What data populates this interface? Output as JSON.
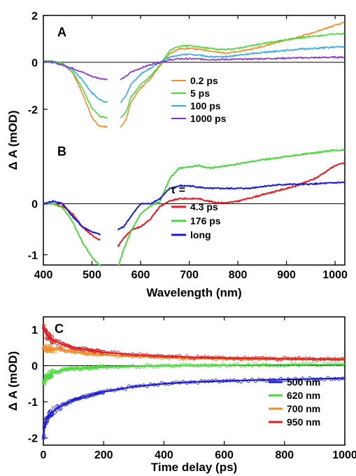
{
  "colors": {
    "orange": "#f28c28",
    "green": "#4ad83c",
    "lightblue": "#35a9e6",
    "purple": "#8a32c8",
    "red": "#e01f26",
    "blue": "#1b1bd6",
    "black": "#000000"
  },
  "chart_data": [
    {
      "type": "line",
      "panel_label": "A",
      "xlabel": "Wavelength (nm)",
      "ylabel": "Δ A (mOD)",
      "xlim": [
        400,
        1020
      ],
      "ylim": [
        -3.2,
        2.0
      ],
      "xticks": [
        400,
        500,
        600,
        700,
        800,
        900,
        1000
      ],
      "xtick_labels": [
        "400",
        "500",
        "600",
        "700",
        "800",
        "900",
        "1000"
      ],
      "yticks": [
        -2,
        0,
        2
      ],
      "ytick_labels": [
        "-2",
        "0",
        "2"
      ],
      "zero_line": true,
      "legend_position": "center-right",
      "series": [
        {
          "name": "0.2 ps",
          "color_key": "orange",
          "points": [
            [
              400,
              0.05
            ],
            [
              420,
              0.05
            ],
            [
              440,
              -0.05
            ],
            [
              460,
              -0.45
            ],
            [
              480,
              -1.3
            ],
            [
              500,
              -2.35
            ],
            [
              515,
              -2.72
            ],
            [
              530,
              -2.75
            ],
            [
              560,
              -2.75
            ],
            [
              570,
              -2.45
            ],
            [
              580,
              -1.7
            ],
            [
              600,
              -1.1
            ],
            [
              620,
              -0.7
            ],
            [
              640,
              -0.15
            ],
            [
              660,
              0.38
            ],
            [
              680,
              0.58
            ],
            [
              700,
              0.6
            ],
            [
              720,
              0.55
            ],
            [
              740,
              0.5
            ],
            [
              760,
              0.42
            ],
            [
              780,
              0.4
            ],
            [
              800,
              0.45
            ],
            [
              840,
              0.62
            ],
            [
              880,
              0.85
            ],
            [
              920,
              1.05
            ],
            [
              960,
              1.3
            ],
            [
              1000,
              1.58
            ],
            [
              1020,
              1.7
            ]
          ]
        },
        {
          "name": "5 ps",
          "color_key": "green",
          "points": [
            [
              400,
              0.05
            ],
            [
              420,
              0.05
            ],
            [
              440,
              -0.05
            ],
            [
              460,
              -0.4
            ],
            [
              480,
              -1.1
            ],
            [
              500,
              -1.95
            ],
            [
              515,
              -2.3
            ],
            [
              530,
              -2.35
            ],
            [
              560,
              -2.35
            ],
            [
              570,
              -2.1
            ],
            [
              580,
              -1.5
            ],
            [
              600,
              -0.95
            ],
            [
              620,
              -0.6
            ],
            [
              640,
              -0.1
            ],
            [
              660,
              0.5
            ],
            [
              680,
              0.7
            ],
            [
              700,
              0.72
            ],
            [
              720,
              0.65
            ],
            [
              740,
              0.6
            ],
            [
              760,
              0.55
            ],
            [
              780,
              0.55
            ],
            [
              800,
              0.6
            ],
            [
              840,
              0.75
            ],
            [
              880,
              0.9
            ],
            [
              920,
              1.02
            ],
            [
              960,
              1.12
            ],
            [
              1000,
              1.2
            ],
            [
              1020,
              1.22
            ]
          ]
        },
        {
          "name": "100 ps",
          "color_key": "lightblue",
          "points": [
            [
              400,
              0.05
            ],
            [
              420,
              0.0
            ],
            [
              440,
              -0.1
            ],
            [
              460,
              -0.3
            ],
            [
              480,
              -0.75
            ],
            [
              500,
              -1.3
            ],
            [
              515,
              -1.6
            ],
            [
              530,
              -1.7
            ],
            [
              560,
              -1.7
            ],
            [
              570,
              -1.4
            ],
            [
              580,
              -0.95
            ],
            [
              600,
              -0.5
            ],
            [
              620,
              -0.25
            ],
            [
              640,
              0.0
            ],
            [
              660,
              0.22
            ],
            [
              680,
              0.3
            ],
            [
              700,
              0.35
            ],
            [
              720,
              0.3
            ],
            [
              740,
              0.25
            ],
            [
              760,
              0.22
            ],
            [
              780,
              0.25
            ],
            [
              800,
              0.3
            ],
            [
              840,
              0.4
            ],
            [
              880,
              0.48
            ],
            [
              920,
              0.55
            ],
            [
              960,
              0.6
            ],
            [
              1000,
              0.65
            ],
            [
              1020,
              0.66
            ]
          ]
        },
        {
          "name": "1000 ps",
          "color_key": "purple",
          "points": [
            [
              400,
              0.05
            ],
            [
              420,
              0.0
            ],
            [
              440,
              -0.12
            ],
            [
              460,
              -0.25
            ],
            [
              480,
              -0.42
            ],
            [
              500,
              -0.6
            ],
            [
              515,
              -0.68
            ],
            [
              530,
              -0.72
            ],
            [
              560,
              -0.72
            ],
            [
              570,
              -0.6
            ],
            [
              580,
              -0.42
            ],
            [
              600,
              -0.25
            ],
            [
              620,
              -0.1
            ],
            [
              640,
              0.0
            ],
            [
              660,
              0.1
            ],
            [
              680,
              0.15
            ],
            [
              700,
              0.15
            ],
            [
              720,
              0.14
            ],
            [
              740,
              0.12
            ],
            [
              760,
              0.12
            ],
            [
              800,
              0.13
            ],
            [
              840,
              0.15
            ],
            [
              880,
              0.17
            ],
            [
              920,
              0.19
            ],
            [
              960,
              0.2
            ],
            [
              1000,
              0.22
            ],
            [
              1020,
              0.22
            ]
          ]
        }
      ]
    },
    {
      "type": "line",
      "panel_label": "B",
      "legend_title": "τ =",
      "xlim": [
        400,
        1020
      ],
      "ylim": [
        -1.2,
        1.3
      ],
      "yticks": [
        -1,
        0
      ],
      "ytick_labels": [
        "-1",
        "0"
      ],
      "zero_line": true,
      "legend_position": "center-right",
      "series": [
        {
          "name": "4.3 ps",
          "color_key": "red",
          "points": [
            [
              400,
              0.0
            ],
            [
              420,
              0.0
            ],
            [
              440,
              -0.05
            ],
            [
              460,
              -0.2
            ],
            [
              480,
              -0.45
            ],
            [
              500,
              -0.62
            ],
            [
              515,
              -0.7
            ],
            [
              555,
              -0.82
            ],
            [
              565,
              -0.68
            ],
            [
              580,
              -0.52
            ],
            [
              600,
              -0.45
            ],
            [
              620,
              -0.3
            ],
            [
              640,
              -0.05
            ],
            [
              660,
              0.05
            ],
            [
              680,
              0.1
            ],
            [
              700,
              0.1
            ],
            [
              720,
              0.1
            ],
            [
              740,
              0.05
            ],
            [
              760,
              0.02
            ],
            [
              780,
              0.02
            ],
            [
              800,
              0.05
            ],
            [
              840,
              0.15
            ],
            [
              880,
              0.25
            ],
            [
              920,
              0.35
            ],
            [
              960,
              0.5
            ],
            [
              1000,
              0.75
            ],
            [
              1020,
              0.8
            ]
          ]
        },
        {
          "name": "176 ps",
          "color_key": "green",
          "points": [
            [
              400,
              0.0
            ],
            [
              420,
              0.0
            ],
            [
              440,
              -0.08
            ],
            [
              460,
              -0.35
            ],
            [
              480,
              -0.75
            ],
            [
              500,
              -1.05
            ],
            [
              515,
              -1.2
            ],
            [
              555,
              -1.2
            ],
            [
              565,
              -0.9
            ],
            [
              580,
              -0.55
            ],
            [
              600,
              -0.2
            ],
            [
              620,
              -0.05
            ],
            [
              640,
              0.05
            ],
            [
              660,
              0.5
            ],
            [
              680,
              0.7
            ],
            [
              700,
              0.72
            ],
            [
              720,
              0.75
            ],
            [
              740,
              0.7
            ],
            [
              760,
              0.72
            ],
            [
              780,
              0.75
            ],
            [
              800,
              0.78
            ],
            [
              840,
              0.85
            ],
            [
              880,
              0.9
            ],
            [
              920,
              0.95
            ],
            [
              960,
              1.0
            ],
            [
              1000,
              1.05
            ],
            [
              1020,
              1.05
            ]
          ]
        },
        {
          "name": "long",
          "color_key": "blue",
          "points": [
            [
              400,
              0.0
            ],
            [
              420,
              0.05
            ],
            [
              440,
              0.0
            ],
            [
              460,
              -0.25
            ],
            [
              480,
              -0.45
            ],
            [
              500,
              -0.55
            ],
            [
              515,
              -0.6
            ],
            [
              555,
              -0.5
            ],
            [
              565,
              -0.45
            ],
            [
              580,
              -0.25
            ],
            [
              600,
              0.0
            ],
            [
              620,
              0.0
            ],
            [
              640,
              0.1
            ],
            [
              660,
              0.3
            ],
            [
              680,
              0.35
            ],
            [
              700,
              0.35
            ],
            [
              740,
              0.3
            ],
            [
              780,
              0.3
            ],
            [
              820,
              0.3
            ],
            [
              860,
              0.35
            ],
            [
              900,
              0.38
            ],
            [
              940,
              0.38
            ],
            [
              980,
              0.4
            ],
            [
              1020,
              0.42
            ]
          ]
        }
      ]
    },
    {
      "type": "scatter",
      "panel_label": "C",
      "xlabel": "Time delay (ps)",
      "ylabel": "Δ A (mOD)",
      "xlim": [
        0,
        1000
      ],
      "ylim": [
        -2.2,
        1.35
      ],
      "xticks": [
        0,
        200,
        400,
        600,
        800,
        1000
      ],
      "xtick_labels": [
        "0",
        "200",
        "400",
        "600",
        "800",
        "1000"
      ],
      "yticks": [
        -2,
        -1,
        0,
        1
      ],
      "ytick_labels": [
        "-2",
        "-1",
        "0",
        "1"
      ],
      "zero_line": true,
      "legend_position": "bottom-right",
      "series": [
        {
          "name": "500 nm",
          "color_key": "blue",
          "fit": [
            [
              0,
              -2.0
            ],
            [
              5,
              -1.6
            ],
            [
              20,
              -1.35
            ],
            [
              50,
              -1.15
            ],
            [
              100,
              -0.95
            ],
            [
              200,
              -0.72
            ],
            [
              300,
              -0.58
            ],
            [
              400,
              -0.5
            ],
            [
              500,
              -0.45
            ],
            [
              700,
              -0.4
            ],
            [
              1000,
              -0.35
            ]
          ]
        },
        {
          "name": "620 nm",
          "color_key": "green",
          "fit": [
            [
              0,
              -0.5
            ],
            [
              10,
              -0.3
            ],
            [
              30,
              -0.2
            ],
            [
              60,
              -0.12
            ],
            [
              100,
              -0.08
            ],
            [
              200,
              -0.04
            ],
            [
              400,
              0.0
            ],
            [
              700,
              0.02
            ],
            [
              1000,
              0.03
            ]
          ]
        },
        {
          "name": "700 nm",
          "color_key": "orange",
          "fit": [
            [
              0,
              0.45
            ],
            [
              20,
              0.48
            ],
            [
              50,
              0.45
            ],
            [
              100,
              0.38
            ],
            [
              200,
              0.3
            ],
            [
              300,
              0.25
            ],
            [
              500,
              0.2
            ],
            [
              700,
              0.18
            ],
            [
              1000,
              0.17
            ]
          ]
        },
        {
          "name": "950 nm",
          "color_key": "red",
          "fit": [
            [
              0,
              1.1
            ],
            [
              10,
              0.85
            ],
            [
              30,
              0.72
            ],
            [
              60,
              0.6
            ],
            [
              100,
              0.5
            ],
            [
              200,
              0.37
            ],
            [
              300,
              0.3
            ],
            [
              500,
              0.23
            ],
            [
              700,
              0.2
            ],
            [
              1000,
              0.18
            ]
          ]
        }
      ]
    }
  ]
}
